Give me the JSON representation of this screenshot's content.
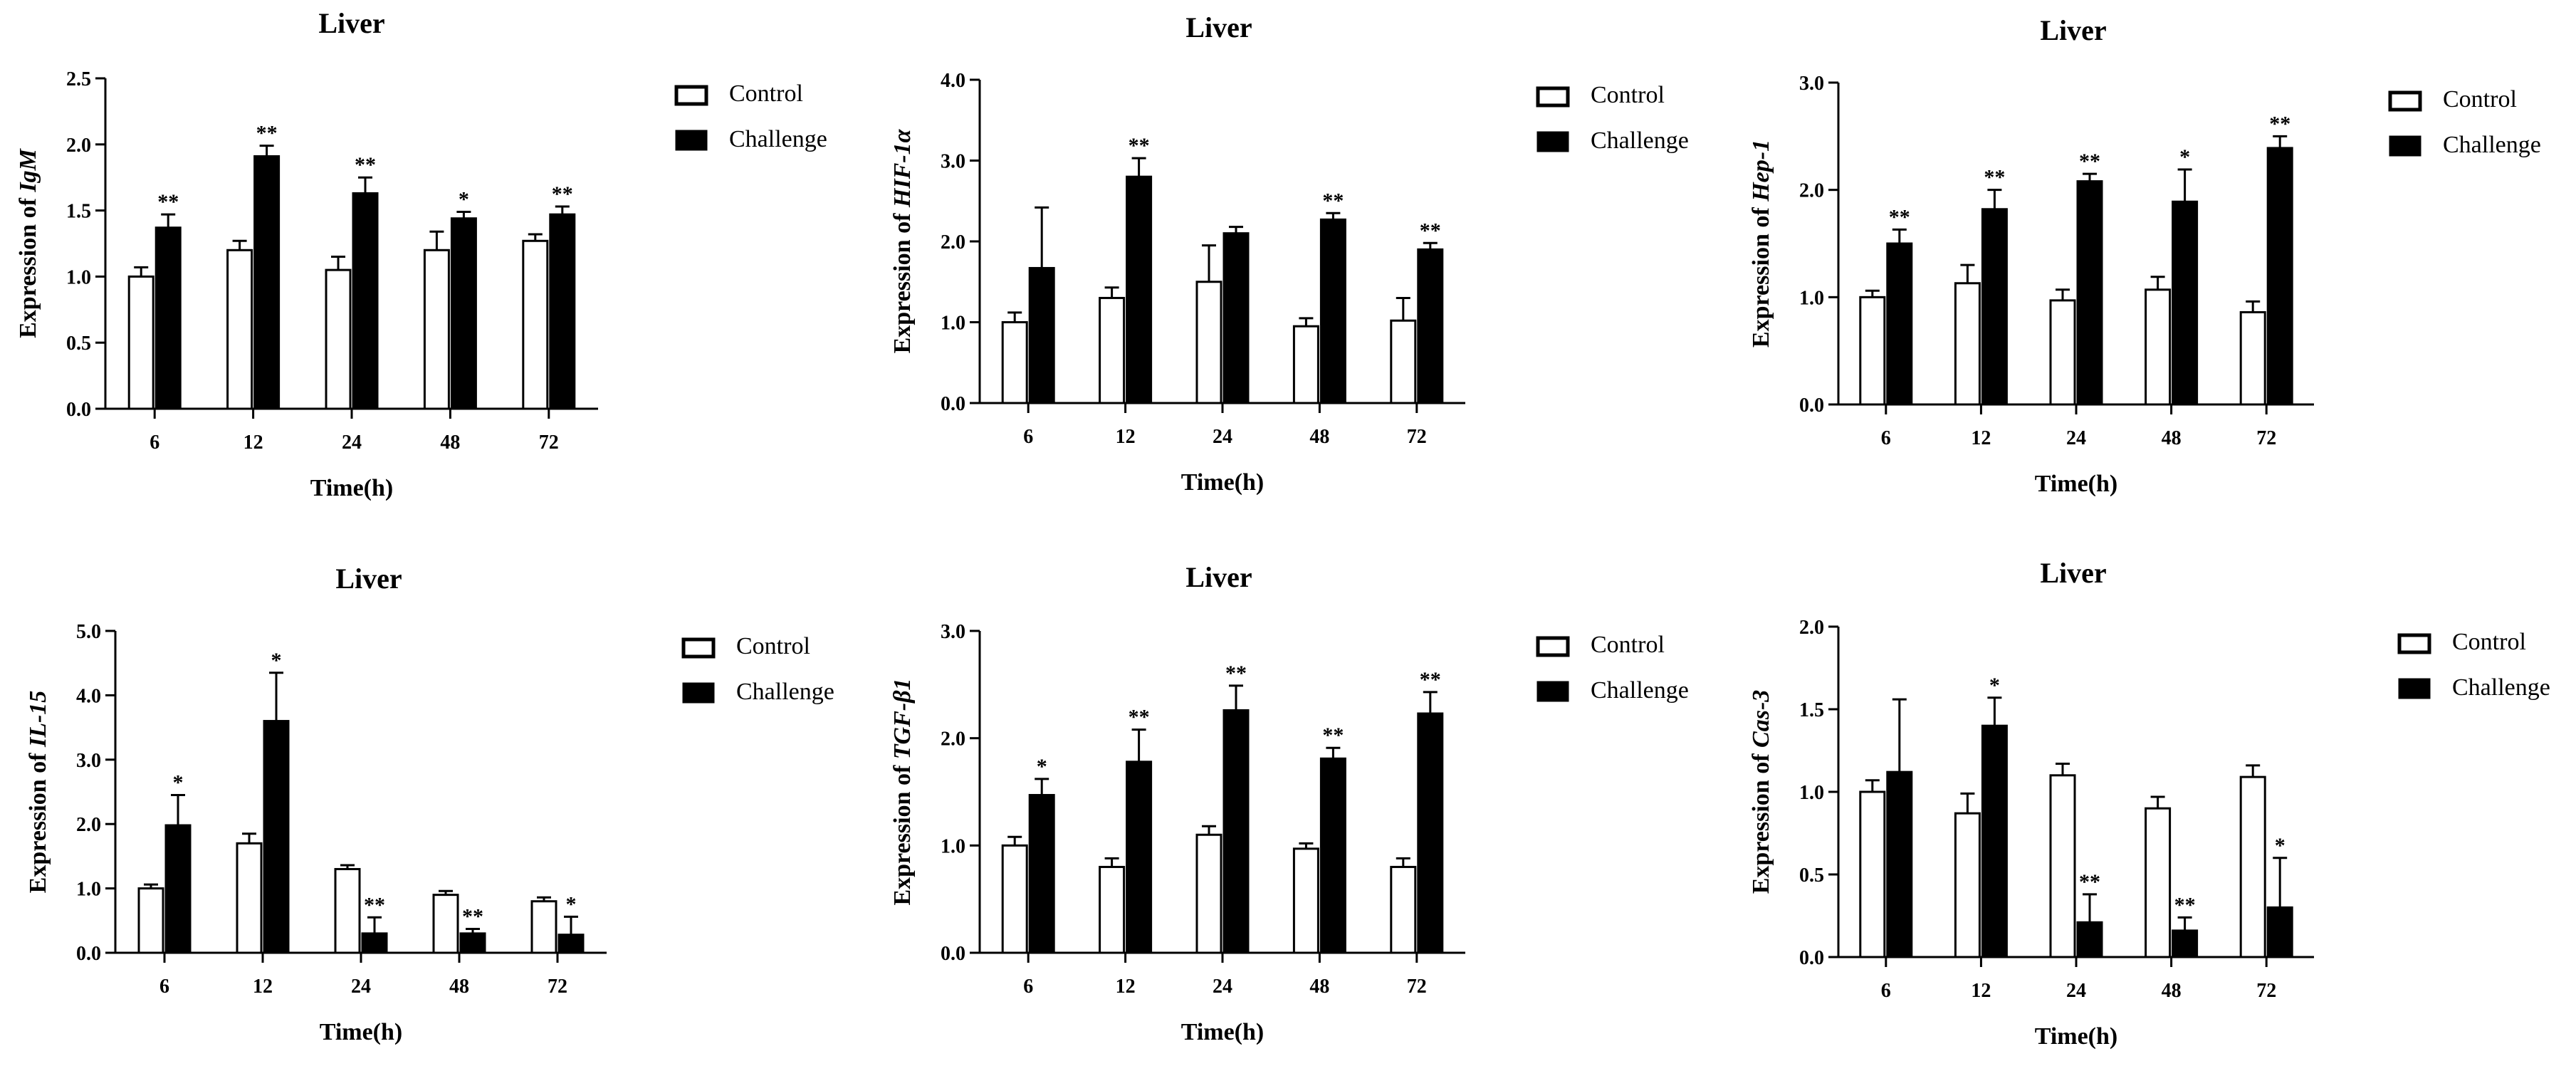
{
  "figure": {
    "panel_count": 6
  },
  "legend": {
    "control_label": "Control",
    "challenge_label": "Challenge"
  },
  "chart_data": [
    {
      "type": "bar",
      "title": "Liver",
      "ylabel_prefix": "Expression of ",
      "gene": "IgM",
      "xlabel": "Time(h)",
      "categories": [
        "6",
        "12",
        "24",
        "48",
        "72"
      ],
      "ylim": [
        0,
        2.5
      ],
      "yticks": [
        "0.0",
        "0.5",
        "1.0",
        "1.5",
        "2.0",
        "2.5"
      ],
      "series": [
        {
          "name": "Control",
          "values": [
            1.0,
            1.2,
            1.05,
            1.2,
            1.27
          ],
          "errors": [
            0.07,
            0.07,
            0.1,
            0.14,
            0.05
          ],
          "marks": [
            "",
            "",
            "",
            "",
            ""
          ]
        },
        {
          "name": "Challenge",
          "values": [
            1.37,
            1.91,
            1.63,
            1.44,
            1.47
          ],
          "errors": [
            0.1,
            0.08,
            0.12,
            0.05,
            0.06
          ],
          "marks": [
            "**",
            "**",
            "**",
            "*",
            "**"
          ]
        }
      ]
    },
    {
      "type": "bar",
      "title": "Liver",
      "ylabel_prefix": "Expression of ",
      "gene": "HIF-1α",
      "xlabel": "Time(h)",
      "categories": [
        "6",
        "12",
        "24",
        "48",
        "72"
      ],
      "ylim": [
        0,
        4.0
      ],
      "yticks": [
        "0.0",
        "1.0",
        "2.0",
        "3.0",
        "4.0"
      ],
      "series": [
        {
          "name": "Control",
          "values": [
            1.0,
            1.3,
            1.5,
            0.95,
            1.02
          ],
          "errors": [
            0.12,
            0.13,
            0.45,
            0.1,
            0.28
          ],
          "marks": [
            "",
            "",
            "",
            "",
            ""
          ]
        },
        {
          "name": "Challenge",
          "values": [
            1.67,
            2.8,
            2.1,
            2.27,
            1.9
          ],
          "errors": [
            0.75,
            0.23,
            0.08,
            0.08,
            0.08
          ],
          "marks": [
            "",
            "**",
            "",
            "**",
            "**"
          ]
        }
      ]
    },
    {
      "type": "bar",
      "title": "Liver",
      "ylabel_prefix": "Expression of ",
      "gene": "Hep-1",
      "xlabel": "Time(h)",
      "categories": [
        "6",
        "12",
        "24",
        "48",
        "72"
      ],
      "ylim": [
        0,
        3.0
      ],
      "yticks": [
        "0.0",
        "1.0",
        "2.0",
        "3.0"
      ],
      "series": [
        {
          "name": "Control",
          "values": [
            1.0,
            1.13,
            0.97,
            1.07,
            0.86
          ],
          "errors": [
            0.06,
            0.17,
            0.1,
            0.12,
            0.1
          ],
          "marks": [
            "",
            "",
            "",
            "",
            ""
          ]
        },
        {
          "name": "Challenge",
          "values": [
            1.5,
            1.82,
            2.08,
            1.89,
            2.39
          ],
          "errors": [
            0.13,
            0.18,
            0.07,
            0.3,
            0.11
          ],
          "marks": [
            "**",
            "**",
            "**",
            "*",
            "**"
          ]
        }
      ]
    },
    {
      "type": "bar",
      "title": "Liver",
      "ylabel_prefix": "Expression of ",
      "gene": "IL-15",
      "xlabel": "Time(h)",
      "categories": [
        "6",
        "12",
        "24",
        "48",
        "72"
      ],
      "ylim": [
        0,
        5.0
      ],
      "yticks": [
        "0.0",
        "1.0",
        "2.0",
        "3.0",
        "4.0",
        "5.0"
      ],
      "series": [
        {
          "name": "Control",
          "values": [
            1.0,
            1.7,
            1.3,
            0.9,
            0.8
          ],
          "errors": [
            0.06,
            0.15,
            0.06,
            0.06,
            0.06
          ],
          "marks": [
            "",
            "",
            "",
            "",
            ""
          ]
        },
        {
          "name": "Challenge",
          "values": [
            1.98,
            3.6,
            0.3,
            0.3,
            0.28
          ],
          "errors": [
            0.47,
            0.75,
            0.25,
            0.07,
            0.28
          ],
          "marks": [
            "*",
            "*",
            "**",
            "**",
            "*"
          ]
        }
      ]
    },
    {
      "type": "bar",
      "title": "Liver",
      "ylabel_prefix": "Expression of ",
      "gene": "TGF-β1",
      "xlabel": "Time(h)",
      "categories": [
        "6",
        "12",
        "24",
        "48",
        "72"
      ],
      "ylim": [
        0,
        3.0
      ],
      "yticks": [
        "0.0",
        "1.0",
        "2.0",
        "3.0"
      ],
      "series": [
        {
          "name": "Control",
          "values": [
            1.0,
            0.8,
            1.1,
            0.97,
            0.8
          ],
          "errors": [
            0.08,
            0.08,
            0.08,
            0.05,
            0.08
          ],
          "marks": [
            "",
            "",
            "",
            "",
            ""
          ]
        },
        {
          "name": "Challenge",
          "values": [
            1.47,
            1.78,
            2.26,
            1.81,
            2.23
          ],
          "errors": [
            0.15,
            0.3,
            0.23,
            0.1,
            0.2
          ],
          "marks": [
            "*",
            "**",
            "**",
            "**",
            "**"
          ]
        }
      ]
    },
    {
      "type": "bar",
      "title": "Liver",
      "ylabel_prefix": "Expression of ",
      "gene": "Cas-3",
      "xlabel": "Time(h)",
      "categories": [
        "6",
        "12",
        "24",
        "48",
        "72"
      ],
      "ylim": [
        0,
        2.0
      ],
      "yticks": [
        "0.0",
        "0.5",
        "1.0",
        "1.5",
        "2.0"
      ],
      "series": [
        {
          "name": "Control",
          "values": [
            1.0,
            0.87,
            1.1,
            0.9,
            1.09
          ],
          "errors": [
            0.07,
            0.12,
            0.07,
            0.07,
            0.07
          ],
          "marks": [
            "",
            "",
            "",
            "",
            ""
          ]
        },
        {
          "name": "Challenge",
          "values": [
            1.12,
            1.4,
            0.21,
            0.16,
            0.3
          ],
          "errors": [
            0.44,
            0.17,
            0.17,
            0.08,
            0.3
          ],
          "marks": [
            "",
            "*",
            "**",
            "**",
            "*"
          ]
        }
      ]
    }
  ]
}
